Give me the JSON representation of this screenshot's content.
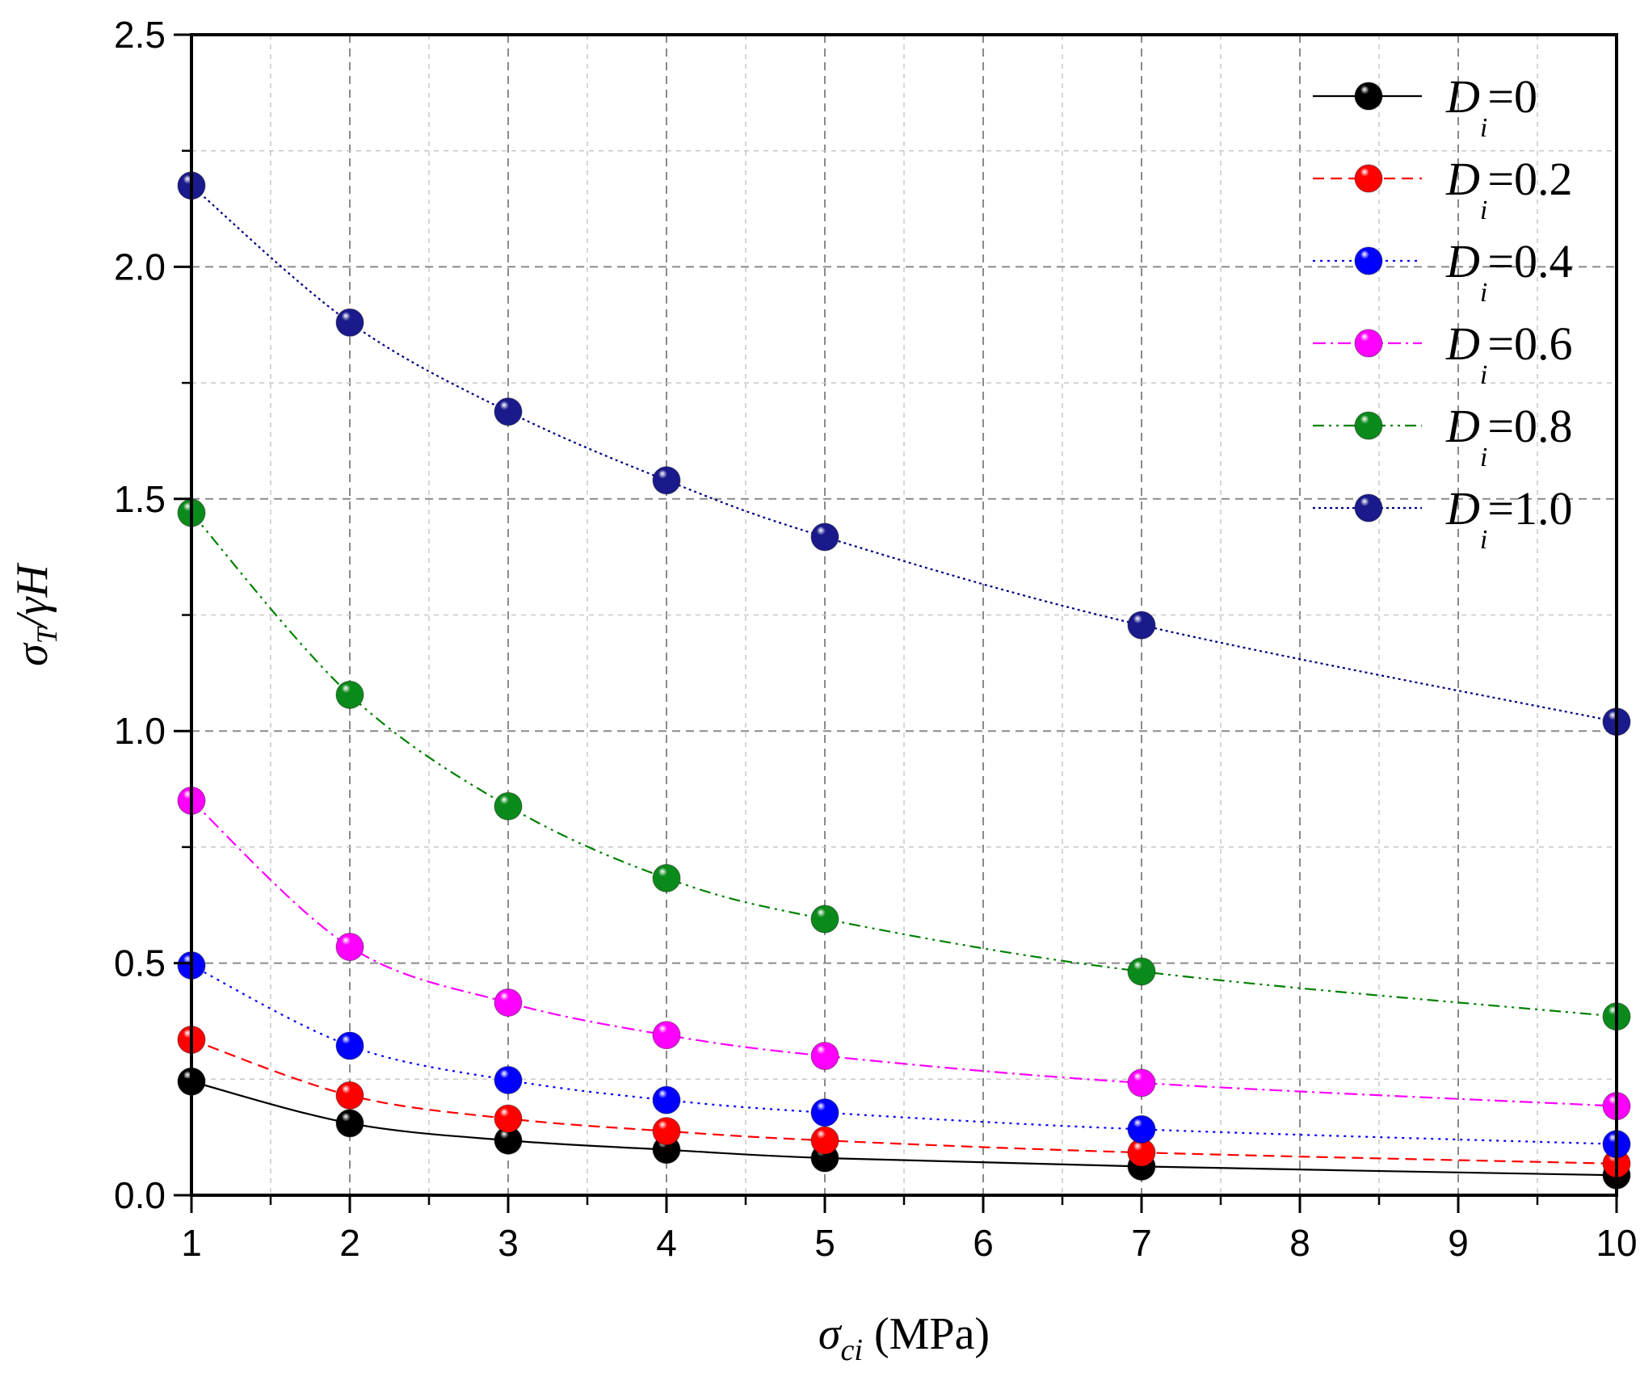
{
  "chart_data": {
    "type": "line",
    "x": [
      1,
      2,
      3,
      4,
      5,
      7,
      10
    ],
    "xlim": [
      1,
      10
    ],
    "ylim": [
      0,
      2.5
    ],
    "x_ticks": [
      "1",
      "2",
      "3",
      "4",
      "5",
      "6",
      "7",
      "8",
      "9",
      "10"
    ],
    "y_ticks": [
      "0.0",
      "0.5",
      "1.0",
      "1.5",
      "2.0",
      "2.5"
    ],
    "grid": true,
    "legend_position": "top-right",
    "xlabel": {
      "symbol": "σ",
      "sub": "ci",
      "rest": " (MPa)"
    },
    "ylabel": {
      "symbol": "σ",
      "sub": "T",
      "rest": "/γH"
    },
    "legend_prefix": "D",
    "legend_sub": "i",
    "series": [
      {
        "name": "=0",
        "color": "#000000",
        "marker_color": "#000000",
        "dash": "solid",
        "values": [
          0.245,
          0.155,
          0.118,
          0.098,
          0.08,
          0.062,
          0.043
        ]
      },
      {
        "name": "=0.2",
        "color": "#ff0000",
        "marker_color": "#ff0000",
        "dash": "dash",
        "values": [
          0.335,
          0.215,
          0.165,
          0.138,
          0.118,
          0.092,
          0.068
        ]
      },
      {
        "name": "=0.4",
        "color": "#0000ff",
        "marker_color": "#0000ff",
        "dash": "dot",
        "values": [
          0.495,
          0.322,
          0.248,
          0.205,
          0.178,
          0.142,
          0.11
        ]
      },
      {
        "name": "=0.6",
        "color": "#ff00ff",
        "marker_color": "#ff00ff",
        "dash": "dashdot",
        "values": [
          0.85,
          0.535,
          0.415,
          0.345,
          0.3,
          0.242,
          0.192
        ]
      },
      {
        "name": "=0.8",
        "color": "#008000",
        "marker_color": "#0a8a1a",
        "dash": "dashdotdot",
        "values": [
          1.47,
          1.078,
          0.838,
          0.683,
          0.595,
          0.482,
          0.385
        ]
      },
      {
        "name": "=1.0",
        "color": "#000080",
        "marker_color": "#1a1a8c",
        "dash": "shortdot",
        "values": [
          2.175,
          1.88,
          1.688,
          1.54,
          1.418,
          1.228,
          1.02
        ]
      }
    ]
  }
}
